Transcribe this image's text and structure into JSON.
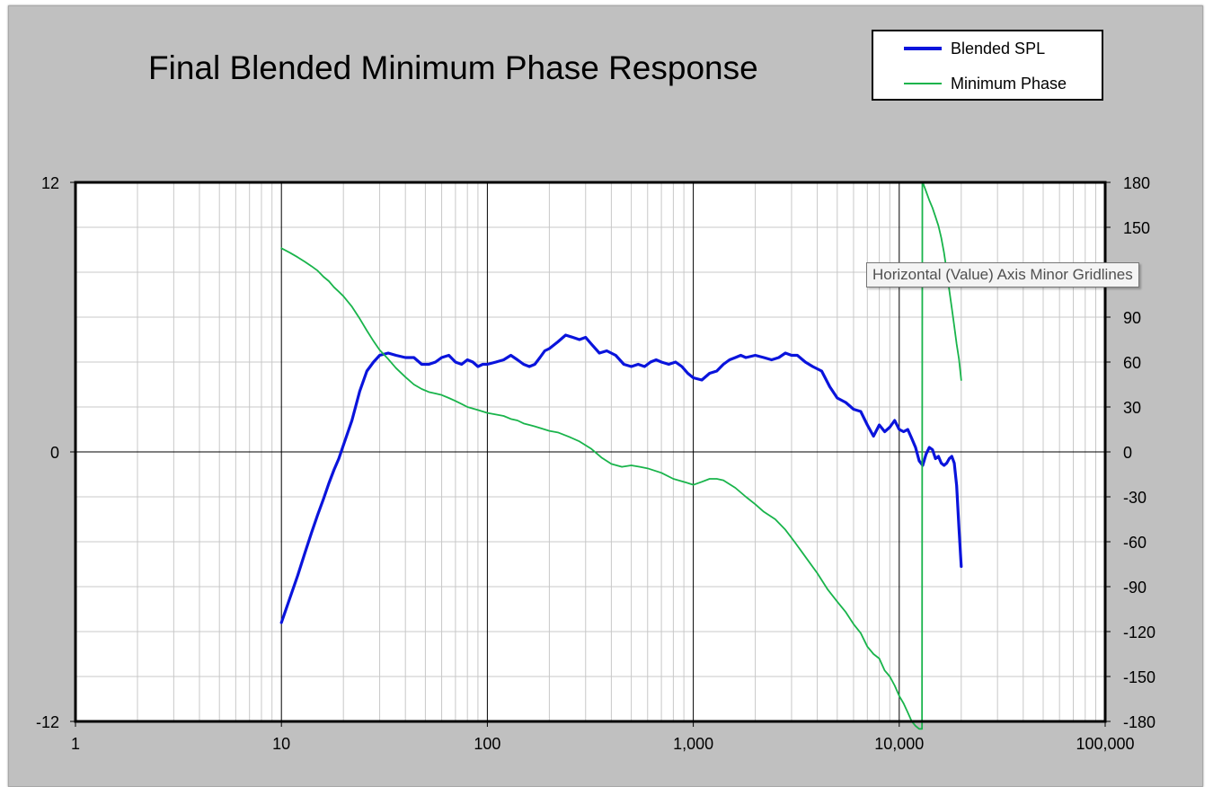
{
  "chart_data": {
    "type": "line",
    "title": "Final Blended Minimum Phase Response",
    "x_scale": "log",
    "xlim": [
      1,
      100000
    ],
    "x_ticks": [
      "1",
      "10",
      "100",
      "1,000",
      "10,000",
      "100,000"
    ],
    "ylim_left": [
      -12,
      12
    ],
    "y_ticks_left": [
      "12",
      "0",
      "-12"
    ],
    "ylim_right": [
      -180,
      180
    ],
    "y_ticks_right": [
      "180",
      "150",
      "",
      "90",
      "60",
      "30",
      "0",
      "-30",
      "-60",
      "-90",
      "-120",
      "-150",
      "-180"
    ],
    "grid": true,
    "legend": {
      "position": "top-right",
      "entries": [
        "Blended SPL",
        "Minimum Phase"
      ]
    },
    "series": [
      {
        "name": "Blended SPL",
        "axis": "left",
        "color": "#0a14dc",
        "x": [
          10,
          11,
          12,
          13,
          14,
          15,
          16,
          17,
          18,
          19,
          20,
          22,
          24,
          26,
          28,
          30,
          33,
          36,
          40,
          44,
          48,
          52,
          56,
          60,
          65,
          70,
          75,
          80,
          85,
          90,
          95,
          100,
          110,
          120,
          130,
          140,
          150,
          160,
          170,
          180,
          190,
          200,
          220,
          240,
          260,
          280,
          300,
          320,
          350,
          380,
          420,
          460,
          500,
          540,
          580,
          620,
          660,
          700,
          760,
          820,
          880,
          940,
          1000,
          1100,
          1200,
          1300,
          1400,
          1500,
          1600,
          1700,
          1800,
          2000,
          2200,
          2400,
          2600,
          2800,
          3000,
          3200,
          3500,
          3800,
          4200,
          4600,
          5000,
          5500,
          6000,
          6500,
          7000,
          7500,
          8000,
          8500,
          9000,
          9500,
          10000,
          10500,
          11000,
          11500,
          12000,
          12500,
          13000,
          13500,
          14000,
          14500,
          15000,
          15500,
          16000,
          16500,
          17000,
          17500,
          18000,
          18500,
          19000,
          19500,
          20000
        ],
        "y": [
          -7.6,
          -6.5,
          -5.5,
          -4.5,
          -3.6,
          -2.8,
          -2.1,
          -1.4,
          -0.8,
          -0.3,
          0.3,
          1.4,
          2.7,
          3.6,
          4.0,
          4.3,
          4.4,
          4.3,
          4.2,
          4.2,
          3.9,
          3.9,
          4.0,
          4.2,
          4.3,
          4.0,
          3.9,
          4.1,
          4.0,
          3.8,
          3.9,
          3.9,
          4.0,
          4.1,
          4.3,
          4.1,
          3.9,
          3.8,
          3.9,
          4.2,
          4.5,
          4.6,
          4.9,
          5.2,
          5.1,
          5.0,
          5.1,
          4.8,
          4.4,
          4.5,
          4.3,
          3.9,
          3.8,
          3.9,
          3.8,
          4.0,
          4.1,
          4.0,
          3.9,
          4.0,
          3.8,
          3.5,
          3.3,
          3.2,
          3.5,
          3.6,
          3.9,
          4.1,
          4.2,
          4.3,
          4.2,
          4.3,
          4.2,
          4.1,
          4.2,
          4.4,
          4.3,
          4.3,
          4.0,
          3.8,
          3.6,
          2.9,
          2.4,
          2.2,
          1.9,
          1.8,
          1.2,
          0.7,
          1.2,
          0.9,
          1.1,
          1.4,
          1.0,
          0.9,
          1.0,
          0.6,
          0.2,
          -0.4,
          -0.6,
          -0.1,
          0.2,
          0.1,
          -0.3,
          -0.2,
          -0.5,
          -0.6,
          -0.5,
          -0.3,
          -0.2,
          -0.5,
          -1.5,
          -3.4,
          -5.1
        ]
      },
      {
        "name": "Minimum Phase",
        "axis": "right",
        "color": "#19b44b",
        "x": [
          10,
          11,
          12,
          13,
          14,
          15,
          16,
          17,
          18,
          19,
          20,
          22,
          24,
          26,
          28,
          30,
          33,
          36,
          40,
          44,
          48,
          52,
          56,
          60,
          65,
          70,
          75,
          80,
          90,
          100,
          110,
          120,
          130,
          140,
          150,
          160,
          170,
          180,
          200,
          220,
          250,
          280,
          320,
          360,
          400,
          450,
          500,
          550,
          600,
          700,
          800,
          900,
          1000,
          1100,
          1200,
          1300,
          1400,
          1600,
          1800,
          2000,
          2200,
          2500,
          2800,
          3100,
          3500,
          4000,
          4500,
          5000,
          5500,
          6000,
          6500,
          7000,
          7500,
          8000,
          8500,
          9000,
          9500,
          10000,
          10500,
          11000,
          11500,
          12000,
          12500,
          12900,
          12950,
          13000,
          13500,
          14000,
          14500,
          15000,
          15500,
          16000,
          16500,
          17000,
          17500,
          18000,
          18500,
          19000,
          19500,
          20000
        ],
        "y": [
          136,
          133,
          130,
          127,
          124,
          121,
          117,
          114,
          110,
          107,
          104,
          97,
          89,
          81,
          74,
          68,
          62,
          56,
          50,
          45,
          42,
          40,
          39,
          38,
          36,
          34,
          32,
          30,
          28,
          26,
          25,
          24,
          22,
          21,
          19,
          18,
          17,
          16,
          14,
          13,
          10,
          7,
          2,
          -4,
          -8,
          -10,
          -9,
          -10,
          -11,
          -14,
          -18,
          -20,
          -22,
          -20,
          -18,
          -18,
          -19,
          -24,
          -30,
          -35,
          -40,
          -45,
          -52,
          -60,
          -70,
          -81,
          -92,
          -100,
          -107,
          -115,
          -121,
          -130,
          -135,
          -138,
          -146,
          -150,
          -156,
          -163,
          -168,
          -174,
          -180,
          -183,
          -185,
          -185,
          180,
          180,
          174,
          168,
          163,
          157,
          151,
          143,
          133,
          121,
          108,
          96,
          84,
          72,
          62,
          48
        ]
      }
    ]
  },
  "tooltip": {
    "text": "Horizontal (Value) Axis Minor Gridlines"
  }
}
